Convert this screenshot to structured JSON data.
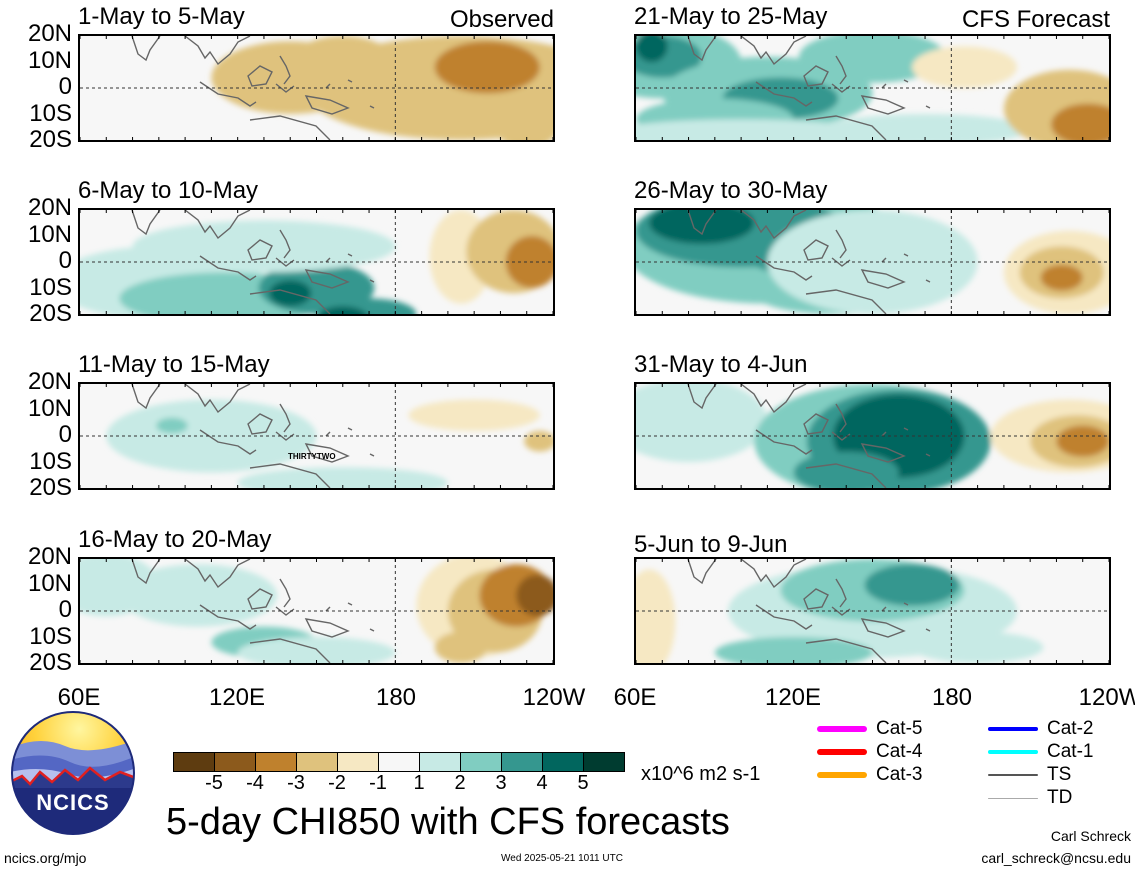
{
  "panels": [
    {
      "id": "p1",
      "title": "1-May to 5-May",
      "tag": "Observed"
    },
    {
      "id": "p2",
      "title": "21-May to 25-May",
      "tag": "CFS Forecast"
    },
    {
      "id": "p3",
      "title": "6-May to 10-May",
      "tag": ""
    },
    {
      "id": "p4",
      "title": "26-May to 30-May",
      "tag": ""
    },
    {
      "id": "p5",
      "title": "11-May to 15-May",
      "tag": "",
      "storm": "THIRTYTWO"
    },
    {
      "id": "p6",
      "title": "31-May to 4-Jun",
      "tag": ""
    },
    {
      "id": "p7",
      "title": "16-May to 20-May",
      "tag": ""
    },
    {
      "id": "p8",
      "title": "5-Jun to 9-Jun",
      "tag": ""
    }
  ],
  "lat_labels": [
    "20N",
    "10N",
    "0",
    "10S",
    "20S"
  ],
  "lon_labels": [
    "60E",
    "120E",
    "180",
    "120W"
  ],
  "colorbar": {
    "labels": [
      "-5",
      "-4",
      "-3",
      "-2",
      "-1",
      "1",
      "2",
      "3",
      "4",
      "5"
    ],
    "colors": [
      "#5e3c10",
      "#8c5a1c",
      "#bf812d",
      "#dfc27d",
      "#f6e8c3",
      "#f7f7f7",
      "#c7eae5",
      "#80cdc1",
      "#35978f",
      "#01665e",
      "#003c30"
    ],
    "units": "x10^6 m2 s-1"
  },
  "logo": {
    "text": "NCICS"
  },
  "main_title": "5-day CHI850 with CFS forecasts",
  "footer": {
    "left": "ncics.org/mjo",
    "center": "Wed 2025-05-21 1011 UTC",
    "author": "Carl Schreck",
    "email": "carl_schreck@ncsu.edu"
  },
  "storm_legend": [
    {
      "label": "Cat-5",
      "color": "#ff00ff",
      "width": 6
    },
    {
      "label": "Cat-4",
      "color": "#ff0000",
      "width": 6
    },
    {
      "label": "Cat-3",
      "color": "#ffa500",
      "width": 6
    },
    {
      "label": "Cat-2",
      "color": "#0000ff",
      "width": 4
    },
    {
      "label": "Cat-1",
      "color": "#00ffff",
      "width": 4
    },
    {
      "label": "TS",
      "color": "#555555",
      "width": 2
    },
    {
      "label": "TD",
      "color": "#aaaaaa",
      "width": 1
    }
  ]
}
